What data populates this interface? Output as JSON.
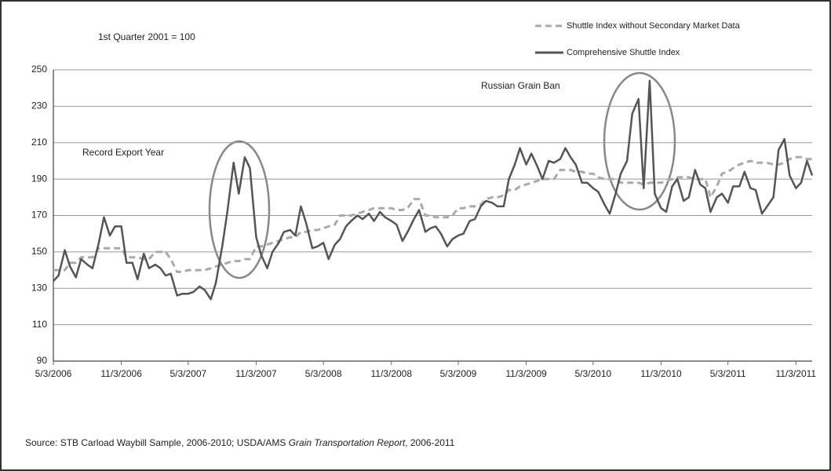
{
  "chart_data": {
    "type": "line",
    "note": "1st Quarter 2001 = 100",
    "annotations": [
      "Record Export Year",
      "Russian Grain Ban"
    ],
    "source": [
      "Source: STB Carload Waybill Sample, 2006-2010; USDA/AMS ",
      "Grain Transportation Report",
      ", 2006-2011"
    ],
    "x": [
      "5/3/2006",
      "5/17/2006",
      "6/3/2006",
      "6/17/2006",
      "7/3/2006",
      "7/17/2006",
      "8/3/2006",
      "8/17/2006",
      "9/3/2006",
      "9/17/2006",
      "10/3/2006",
      "10/17/2006",
      "11/3/2006",
      "11/17/2006",
      "12/3/2006",
      "12/17/2006",
      "1/3/2007",
      "1/17/2007",
      "2/3/2007",
      "2/17/2007",
      "3/3/2007",
      "3/17/2007",
      "4/3/2007",
      "4/17/2007",
      "5/3/2007",
      "5/17/2007",
      "6/3/2007",
      "6/17/2007",
      "7/3/2007",
      "7/17/2007",
      "8/3/2007",
      "8/17/2007",
      "9/3/2007",
      "9/17/2007",
      "10/3/2007",
      "10/17/2007",
      "11/3/2007",
      "11/17/2007",
      "12/3/2007",
      "12/17/2007",
      "1/3/2008",
      "1/17/2008",
      "2/3/2008",
      "2/17/2008",
      "3/3/2008",
      "3/17/2008",
      "4/3/2008",
      "4/17/2008",
      "5/3/2008",
      "5/17/2008",
      "6/3/2008",
      "6/17/2008",
      "7/3/2008",
      "7/17/2008",
      "8/3/2008",
      "8/17/2008",
      "9/3/2008",
      "9/17/2008",
      "10/3/2008",
      "10/17/2008",
      "11/3/2008",
      "11/17/2008",
      "12/3/2008",
      "12/17/2008",
      "1/3/2009",
      "1/17/2009",
      "2/3/2009",
      "2/17/2009",
      "3/3/2009",
      "3/17/2009",
      "4/3/2009",
      "4/17/2009",
      "5/3/2009",
      "5/17/2009",
      "6/3/2009",
      "6/17/2009",
      "7/3/2009",
      "7/17/2009",
      "8/3/2009",
      "8/17/2009",
      "9/3/2009",
      "9/17/2009",
      "10/3/2009",
      "10/17/2009",
      "11/3/2009",
      "11/17/2009",
      "12/3/2009",
      "12/17/2009",
      "1/3/2010",
      "1/17/2010",
      "2/3/2010",
      "2/17/2010",
      "3/3/2010",
      "3/17/2010",
      "4/3/2010",
      "4/17/2010",
      "5/3/2010",
      "5/17/2010",
      "6/3/2010",
      "6/17/2010",
      "7/3/2010",
      "7/17/2010",
      "8/3/2010",
      "8/17/2010",
      "9/3/2010",
      "9/17/2010",
      "10/3/2010",
      "10/17/2010",
      "11/3/2010",
      "11/17/2010",
      "12/3/2010",
      "12/17/2010",
      "1/3/2011",
      "1/17/2011",
      "2/3/2011",
      "2/17/2011",
      "3/3/2011",
      "3/17/2011",
      "4/3/2011",
      "4/17/2011",
      "5/3/2011",
      "5/17/2011",
      "6/3/2011",
      "6/17/2011",
      "7/3/2011",
      "7/17/2011",
      "8/3/2011",
      "8/17/2011",
      "9/3/2011",
      "9/17/2011",
      "10/3/2011",
      "10/17/2011",
      "11/3/2011",
      "11/17/2011",
      "12/3/2011",
      "12/17/2011"
    ],
    "series": [
      {
        "name": "Shuttle Index without Secondary Market Data",
        "color": "#aaaaaa",
        "dashed": true,
        "values": [
          140,
          140,
          140,
          144,
          144,
          147,
          147,
          147,
          152,
          152,
          152,
          152,
          152,
          147,
          147,
          147,
          146,
          146,
          150,
          150,
          150,
          146,
          139,
          139,
          140,
          140,
          140,
          140,
          141,
          142,
          143,
          144,
          145,
          145,
          146,
          146,
          153,
          153,
          154,
          155,
          156,
          157,
          158,
          158,
          161,
          161,
          162,
          162,
          163,
          164,
          165,
          170,
          170,
          170,
          171,
          172,
          173,
          174,
          174,
          174,
          174,
          173,
          173,
          174,
          179,
          179,
          170,
          170,
          169,
          169,
          169,
          170,
          174,
          174,
          175,
          175,
          176,
          179,
          180,
          180,
          181,
          184,
          184,
          186,
          187,
          188,
          189,
          190,
          190,
          190,
          195,
          195,
          195,
          194,
          194,
          193,
          193,
          191,
          190,
          190,
          190,
          188,
          188,
          188,
          188,
          187,
          188,
          188,
          188,
          189,
          190,
          191,
          191,
          191,
          190,
          190,
          190,
          180,
          186,
          193,
          194,
          196,
          198,
          199,
          200,
          199,
          199,
          199,
          198,
          198,
          199,
          201,
          202,
          202,
          201,
          201
        ]
      },
      {
        "name": "Comprehensive Shuttle Index",
        "color": "#555555",
        "dashed": false,
        "values": [
          134,
          137,
          151,
          142,
          136,
          146,
          143,
          141,
          155,
          169,
          159,
          164,
          164,
          144,
          144,
          135,
          149,
          141,
          143,
          141,
          137,
          138,
          126,
          127,
          127,
          128,
          131,
          129,
          124,
          133,
          153,
          172,
          199,
          182,
          202,
          196,
          158,
          148,
          141,
          150,
          155,
          161,
          162,
          159,
          175,
          166,
          152,
          153,
          155,
          146,
          154,
          157,
          164,
          167,
          170,
          168,
          171,
          167,
          172,
          169,
          167,
          165,
          156,
          161,
          168,
          173,
          161,
          163,
          164,
          160,
          153,
          157,
          159,
          160,
          167,
          168,
          175,
          178,
          177,
          175,
          175,
          190,
          198,
          207,
          198,
          204,
          197,
          190,
          200,
          199,
          201,
          207,
          202,
          198,
          188,
          188,
          185,
          183,
          176,
          171,
          182,
          193,
          200,
          226,
          234,
          185,
          244,
          182,
          174,
          172,
          186,
          190,
          178,
          180,
          195,
          187,
          185,
          172,
          180,
          182,
          177,
          186,
          186,
          194,
          185,
          184,
          171,
          175,
          180,
          206,
          212,
          192,
          185,
          188,
          200,
          192
        ]
      }
    ],
    "xlim": [
      "5/3/2006",
      "12/17/2011"
    ],
    "xticks": [
      "5/3/2006",
      "11/3/2006",
      "5/3/2007",
      "11/3/2007",
      "5/3/2008",
      "11/3/2008",
      "5/3/2009",
      "11/3/2009",
      "5/3/2010",
      "11/3/2010",
      "5/3/2011",
      "11/3/2011"
    ],
    "ylim": [
      90,
      250
    ],
    "yticks": [
      90,
      110,
      130,
      150,
      170,
      190,
      210,
      230,
      250
    ],
    "grid": true,
    "legend": "top-right"
  }
}
